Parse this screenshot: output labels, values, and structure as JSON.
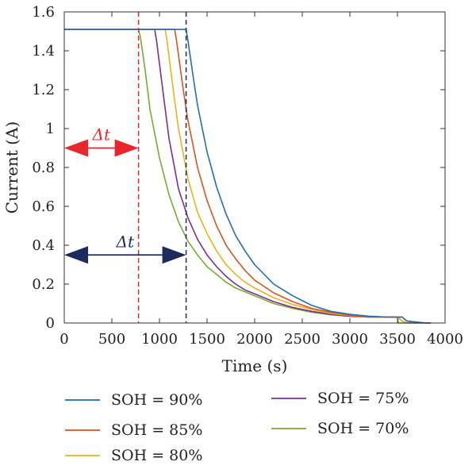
{
  "chart_data": {
    "type": "line",
    "xlabel": "Time (s)",
    "ylabel": "Current (A)",
    "xlim": [
      0,
      4000
    ],
    "ylim": [
      0,
      1.6
    ],
    "xticks": [
      0,
      500,
      1000,
      1500,
      2000,
      2500,
      3000,
      3500,
      4000
    ],
    "yticks": [
      0,
      0.2,
      0.4,
      0.6,
      0.8,
      1,
      1.2,
      1.4,
      1.6
    ],
    "ytick_labels": [
      "0",
      "0.2",
      "0.4",
      "0.6",
      "0.8",
      "1",
      "1.2",
      "1.4",
      "1.6"
    ],
    "grid": false,
    "legend_position": "bottom",
    "series": [
      {
        "name": "SOH = 90%",
        "color": "#1f6fb4",
        "x": [
          0,
          500,
          1000,
          1280,
          1300,
          1350,
          1400,
          1500,
          1600,
          1700,
          1800,
          1900,
          2000,
          2200,
          2400,
          2600,
          2800,
          3000,
          3200,
          3400,
          3550,
          3600,
          3800,
          3850
        ],
        "y": [
          1.51,
          1.51,
          1.51,
          1.51,
          1.45,
          1.28,
          1.12,
          0.88,
          0.7,
          0.56,
          0.45,
          0.37,
          0.3,
          0.2,
          0.14,
          0.09,
          0.06,
          0.045,
          0.035,
          0.03,
          0.03,
          0.01,
          0.0,
          0.0
        ]
      },
      {
        "name": "SOH = 85%",
        "color": "#d9541e",
        "x": [
          0,
          500,
          1000,
          1160,
          1180,
          1250,
          1300,
          1400,
          1500,
          1600,
          1700,
          1800,
          1900,
          2000,
          2200,
          2400,
          2600,
          2800,
          3000,
          3200,
          3400,
          3550,
          3600,
          3800,
          3850
        ],
        "y": [
          1.51,
          1.51,
          1.51,
          1.51,
          1.45,
          1.2,
          1.04,
          0.8,
          0.63,
          0.5,
          0.4,
          0.33,
          0.27,
          0.22,
          0.155,
          0.11,
          0.075,
          0.055,
          0.04,
          0.032,
          0.03,
          0.03,
          0.01,
          0.0,
          0.0
        ]
      },
      {
        "name": "SOH = 80%",
        "color": "#edb120",
        "x": [
          0,
          500,
          1000,
          1060,
          1080,
          1150,
          1200,
          1300,
          1400,
          1500,
          1600,
          1700,
          1800,
          1900,
          2000,
          2200,
          2400,
          2600,
          2800,
          3000,
          3200,
          3400,
          3500,
          3550,
          3600,
          3800,
          3850
        ],
        "y": [
          1.51,
          1.51,
          1.51,
          1.51,
          1.45,
          1.18,
          1.0,
          0.74,
          0.57,
          0.46,
          0.37,
          0.3,
          0.25,
          0.21,
          0.18,
          0.13,
          0.095,
          0.07,
          0.05,
          0.038,
          0.03,
          0.03,
          0.03,
          0.01,
          0.0,
          0.0,
          0.0
        ]
      },
      {
        "name": "SOH = 75%",
        "color": "#7e2f8e",
        "x": [
          0,
          500,
          900,
          950,
          970,
          1050,
          1100,
          1200,
          1300,
          1400,
          1500,
          1600,
          1700,
          1800,
          1900,
          2000,
          2200,
          2400,
          2600,
          2800,
          3000,
          3200,
          3400,
          3500,
          3550,
          3600,
          3800,
          3850
        ],
        "y": [
          1.51,
          1.51,
          1.51,
          1.51,
          1.45,
          1.14,
          0.95,
          0.69,
          0.54,
          0.43,
          0.35,
          0.29,
          0.24,
          0.2,
          0.17,
          0.15,
          0.11,
          0.08,
          0.06,
          0.045,
          0.035,
          0.03,
          0.03,
          0.03,
          0.01,
          0.0,
          0.0,
          0.0
        ]
      },
      {
        "name": "SOH = 70%",
        "color": "#77ac30",
        "x": [
          0,
          500,
          780,
          800,
          850,
          900,
          1000,
          1100,
          1200,
          1300,
          1400,
          1500,
          1600,
          1700,
          1800,
          1900,
          2000,
          2200,
          2400,
          2600,
          2800,
          3000,
          3200,
          3400,
          3500,
          3510,
          3800,
          3850
        ],
        "y": [
          1.51,
          1.51,
          1.51,
          1.47,
          1.3,
          1.1,
          0.85,
          0.66,
          0.52,
          0.42,
          0.35,
          0.29,
          0.25,
          0.21,
          0.18,
          0.16,
          0.14,
          0.1,
          0.075,
          0.055,
          0.042,
          0.034,
          0.03,
          0.03,
          0.03,
          0.0,
          0.0,
          0.0
        ]
      }
    ],
    "annotations": [
      {
        "text": "Δt",
        "color": "#e8262b",
        "x_start": 0,
        "x_end": 780,
        "y": 0.9,
        "vline_x": 780
      },
      {
        "text": "Δt",
        "color": "#1c2a5c",
        "x_start": 0,
        "x_end": 1280,
        "y": 0.35,
        "vline_x": 1280
      }
    ]
  }
}
